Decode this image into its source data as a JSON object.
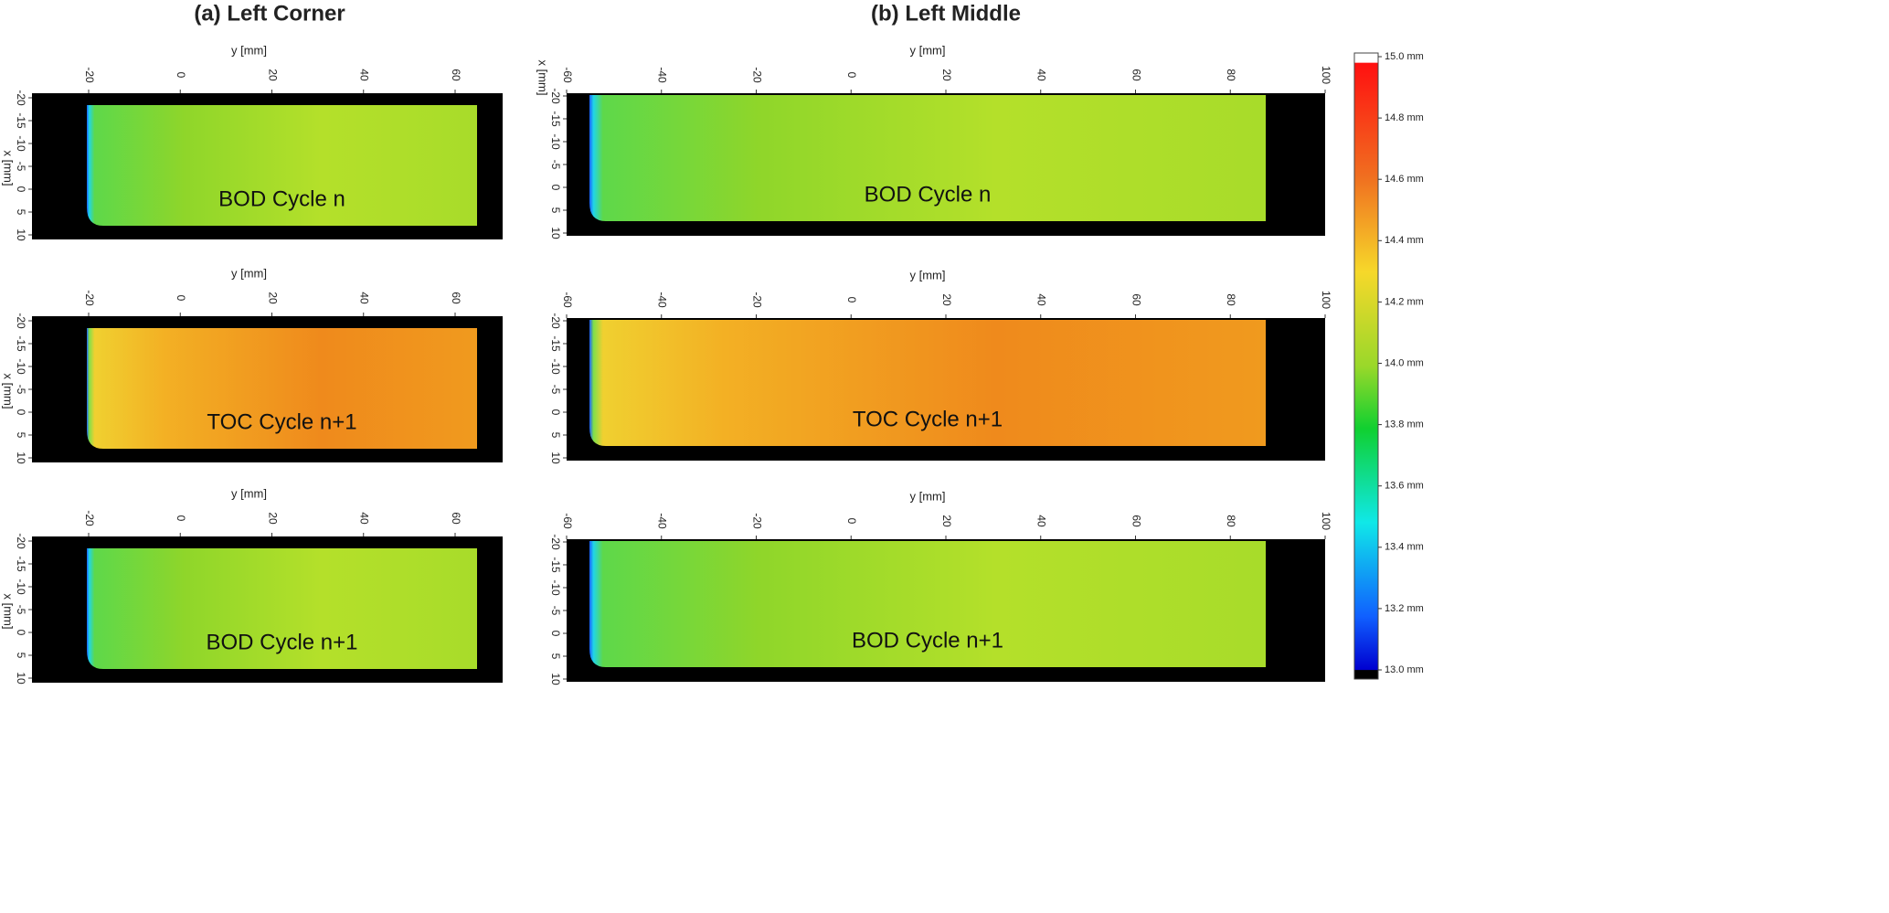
{
  "columns": [
    {
      "title": "(a) Left Corner",
      "y_axis_label": "y [mm]",
      "x_axis_label": "x [mm]",
      "y_ticks": [
        -20,
        0,
        20,
        40,
        60
      ],
      "x_ticks": [
        -20,
        -15,
        -10,
        -5,
        0,
        5,
        10
      ],
      "panels": [
        {
          "label": "BOD Cycle n"
        },
        {
          "label": "TOC Cycle n+1"
        },
        {
          "label": "BOD Cycle n+1"
        }
      ]
    },
    {
      "title": "(b) Left Middle",
      "y_axis_label": "y [mm]",
      "x_axis_label": "x [mm]",
      "y_ticks": [
        -60,
        -40,
        -20,
        0,
        20,
        40,
        60,
        80,
        100
      ],
      "x_ticks": [
        -20,
        -15,
        -10,
        -5,
        0,
        5,
        10
      ],
      "panels": [
        {
          "label": "BOD Cycle n"
        },
        {
          "label": "TOC Cycle n+1"
        },
        {
          "label": "BOD Cycle n+1"
        }
      ]
    }
  ],
  "colorbar": {
    "labels": [
      "15.0 mm",
      "14.8 mm",
      "14.6 mm",
      "14.4 mm",
      "14.2 mm",
      "14.0 mm",
      "13.8 mm",
      "13.6 mm",
      "13.4 mm",
      "13.2 mm",
      "13.0 mm"
    ]
  }
}
